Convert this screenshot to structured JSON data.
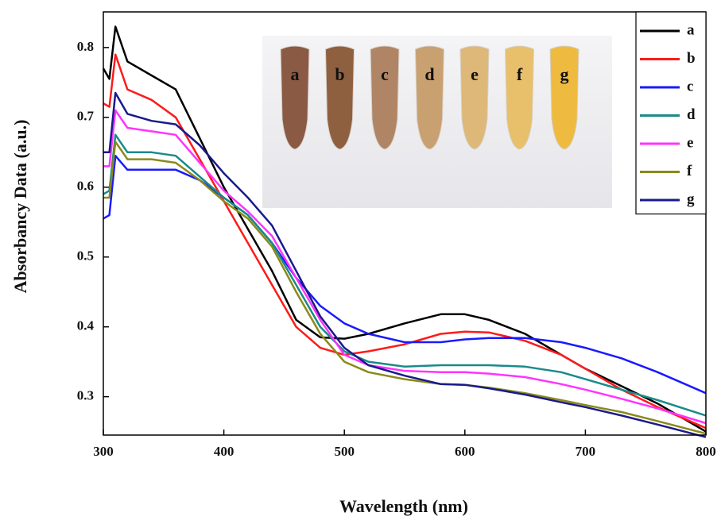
{
  "chart_data": {
    "type": "line",
    "xlabel": "Wavelength (nm)",
    "ylabel": "Absorbancy Data (a.u.)",
    "x": [
      300,
      305,
      310,
      320,
      340,
      360,
      380,
      400,
      420,
      440,
      460,
      480,
      500,
      520,
      550,
      580,
      600,
      620,
      650,
      680,
      700,
      730,
      760,
      800
    ],
    "series": [
      {
        "name": "a",
        "color": "#000000",
        "values": [
          0.77,
          0.755,
          0.83,
          0.78,
          0.76,
          0.74,
          0.67,
          0.6,
          0.54,
          0.48,
          0.41,
          0.385,
          0.383,
          0.39,
          0.405,
          0.418,
          0.418,
          0.41,
          0.39,
          0.36,
          0.34,
          0.315,
          0.29,
          0.25
        ]
      },
      {
        "name": "b",
        "color": "#ff1a1a",
        "values": [
          0.72,
          0.715,
          0.79,
          0.74,
          0.725,
          0.7,
          0.64,
          0.58,
          0.52,
          0.46,
          0.4,
          0.37,
          0.36,
          0.365,
          0.375,
          0.39,
          0.393,
          0.392,
          0.38,
          0.36,
          0.34,
          0.31,
          0.285,
          0.255
        ]
      },
      {
        "name": "c",
        "color": "#1a1aff",
        "values": [
          0.555,
          0.56,
          0.645,
          0.625,
          0.625,
          0.625,
          0.61,
          0.585,
          0.56,
          0.52,
          0.47,
          0.43,
          0.405,
          0.39,
          0.378,
          0.378,
          0.382,
          0.384,
          0.384,
          0.378,
          0.37,
          0.355,
          0.335,
          0.305
        ]
      },
      {
        "name": "d",
        "color": "#1a8a8a",
        "values": [
          0.59,
          0.595,
          0.675,
          0.65,
          0.65,
          0.645,
          0.615,
          0.585,
          0.56,
          0.52,
          0.46,
          0.4,
          0.365,
          0.35,
          0.343,
          0.345,
          0.345,
          0.345,
          0.343,
          0.335,
          0.325,
          0.31,
          0.295,
          0.273
        ]
      },
      {
        "name": "e",
        "color": "#ff33ff",
        "values": [
          0.63,
          0.63,
          0.71,
          0.685,
          0.68,
          0.675,
          0.635,
          0.595,
          0.565,
          0.53,
          0.47,
          0.41,
          0.36,
          0.345,
          0.337,
          0.335,
          0.335,
          0.333,
          0.328,
          0.318,
          0.31,
          0.297,
          0.283,
          0.262
        ]
      },
      {
        "name": "f",
        "color": "#8a8a1a",
        "values": [
          0.585,
          0.585,
          0.665,
          0.64,
          0.64,
          0.635,
          0.61,
          0.58,
          0.555,
          0.515,
          0.45,
          0.39,
          0.35,
          0.335,
          0.325,
          0.318,
          0.317,
          0.313,
          0.305,
          0.295,
          0.288,
          0.278,
          0.265,
          0.247
        ]
      },
      {
        "name": "g",
        "color": "#1a1a8a",
        "values": [
          0.65,
          0.65,
          0.735,
          0.705,
          0.695,
          0.69,
          0.66,
          0.62,
          0.585,
          0.545,
          0.48,
          0.415,
          0.37,
          0.345,
          0.33,
          0.318,
          0.317,
          0.312,
          0.303,
          0.292,
          0.285,
          0.273,
          0.26,
          0.242
        ]
      }
    ],
    "xlim": [
      300,
      800
    ],
    "xticks": [
      300,
      400,
      500,
      600,
      700,
      800
    ],
    "ylim": [
      0.245,
      0.851
    ],
    "yticks": [
      0.3,
      0.4,
      0.5,
      0.6,
      0.7,
      0.8
    ],
    "legend": "upper right"
  }
}
